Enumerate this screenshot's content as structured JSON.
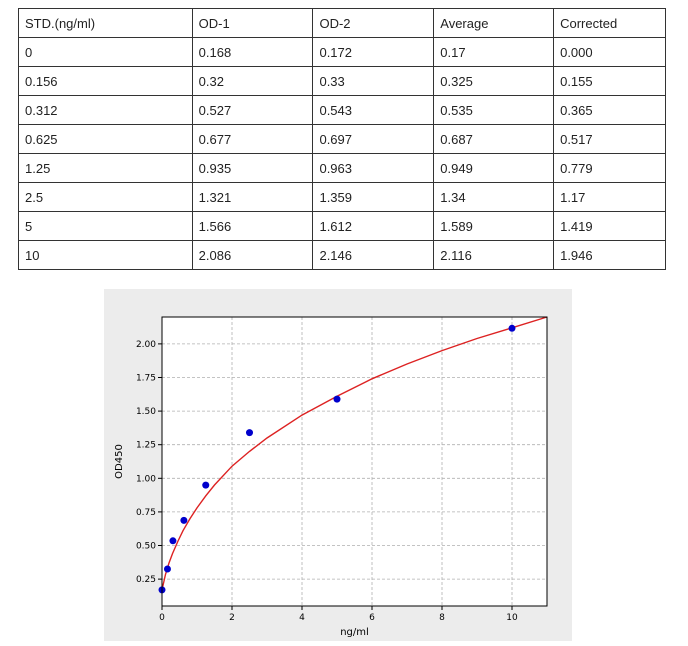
{
  "table": {
    "headers": [
      "STD.(ng/ml)",
      "OD-1",
      "OD-2",
      "Average",
      "Corrected"
    ],
    "rows": [
      [
        "0",
        "0.168",
        "0.172",
        "0.17",
        "0.000"
      ],
      [
        "0.156",
        "0.32",
        "0.33",
        "0.325",
        "0.155"
      ],
      [
        "0.312",
        "0.527",
        "0.543",
        "0.535",
        "0.365"
      ],
      [
        "0.625",
        "0.677",
        "0.697",
        "0.687",
        "0.517"
      ],
      [
        "1.25",
        "0.935",
        "0.963",
        "0.949",
        "0.779"
      ],
      [
        "2.5",
        "1.321",
        "1.359",
        "1.34",
        "1.17"
      ],
      [
        "5",
        "1.566",
        "1.612",
        "1.589",
        "1.419"
      ],
      [
        "10",
        "2.086",
        "2.146",
        "2.116",
        "1.946"
      ]
    ]
  },
  "chart_data": {
    "type": "scatter",
    "title": "",
    "xlabel": "ng/ml",
    "ylabel": "OD450",
    "xlim": [
      0,
      11
    ],
    "ylim": [
      0.05,
      2.2
    ],
    "xticks": [
      0,
      2,
      4,
      6,
      8,
      10
    ],
    "yticks": [
      0.25,
      0.5,
      0.75,
      1.0,
      1.25,
      1.5,
      1.75,
      2.0
    ],
    "xtick_labels": [
      "0",
      "2",
      "4",
      "6",
      "8",
      "10"
    ],
    "ytick_labels": [
      "0.25",
      "0.50",
      "0.75",
      "1.00",
      "1.25",
      "1.50",
      "1.75",
      "2.00"
    ],
    "grid": true,
    "series": [
      {
        "x": [
          0,
          0.156,
          0.312,
          0.625,
          1.25,
          2.5,
          5,
          10
        ],
        "y": [
          0.17,
          0.325,
          0.535,
          0.687,
          0.949,
          1.34,
          1.589,
          2.116
        ],
        "color": "#0000cc",
        "style": "points"
      },
      {
        "x": [
          0,
          0.1,
          0.2,
          0.3,
          0.45,
          0.6,
          0.8,
          1.0,
          1.25,
          1.5,
          2.0,
          2.5,
          3,
          4,
          5,
          6,
          7,
          8,
          9,
          10,
          11
        ],
        "y": [
          0.17,
          0.285,
          0.37,
          0.44,
          0.53,
          0.61,
          0.7,
          0.78,
          0.87,
          0.95,
          1.09,
          1.2,
          1.3,
          1.47,
          1.61,
          1.74,
          1.85,
          1.95,
          2.04,
          2.12,
          2.2
        ],
        "color": "#dd2222",
        "style": "curve"
      }
    ]
  }
}
